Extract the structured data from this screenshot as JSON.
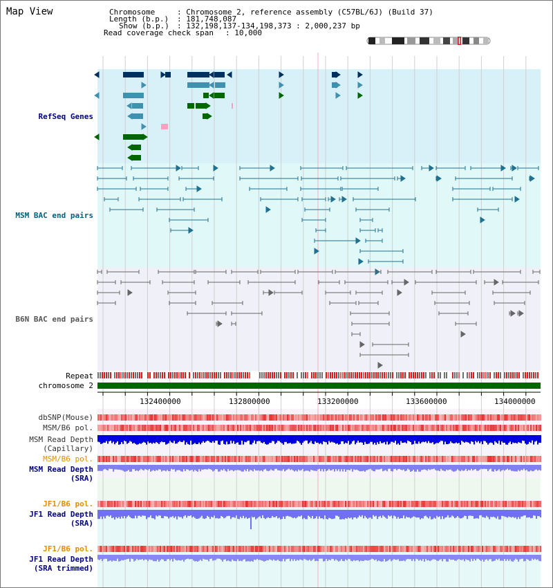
{
  "header": {
    "title": "Map View",
    "chromosome_label": "Chromosome",
    "chromosome_value": ": Chromosome 2, reference assembly (C57BL/6J) (Build 37)",
    "length_label": "Length (b.p.)",
    "length_value": ": 181,748,087",
    "show_label": "Show (b.p.)",
    "show_value": ": 132,198,137-134,198,373 : 2,000,237 bp",
    "coverage_label": "Read coverage check span",
    "coverage_value": ": 10,000"
  },
  "tracks": {
    "refseq": {
      "label": "RefSeq Genes",
      "color": "#000080"
    },
    "msm_bac": {
      "label": "MSM BAC end pairs",
      "color": "#006080"
    },
    "b6n_bac": {
      "label": "B6N BAC end pairs",
      "color": "#555555"
    },
    "repeat": {
      "label": "Repeat"
    },
    "chromosome": {
      "label": "chromosome 2"
    },
    "ruler_ticks": [
      "132400000",
      "132800000",
      "133200000",
      "133600000",
      "134000000"
    ],
    "dbsnp": {
      "label": "dbSNP(Mouse)"
    },
    "msm_b6_pol_1": {
      "label": "MSM/B6 pol."
    },
    "msm_read_depth_cap": {
      "label_line1": "MSM Read Depth",
      "label_line2": "(Capillary)"
    },
    "msm_b6_pol_2": {
      "label": "MSM/B6 pol.",
      "color": "#e09000"
    },
    "msm_read_depth_sra": {
      "label_line1": "MSM Read Depth",
      "label_line2": "(SRA)",
      "color": "#000080"
    },
    "jf1_b6_pol_1": {
      "label": "JF1/B6 pol.",
      "color": "#e09000"
    },
    "jf1_read_depth_sra": {
      "label_line1": "JF1 Read Depth",
      "label_line2": "(SRA)",
      "color": "#000080"
    },
    "jf1_b6_pol_2": {
      "label": "JF1/B6 pol.",
      "color": "#e09000"
    },
    "jf1_read_depth_trim": {
      "label_line1": "JF1 Read Depth",
      "label_line2": "(SRA trimmed)",
      "color": "#000080"
    }
  },
  "colors": {
    "refseq_bg": "#d8f0f8",
    "msm_bg": "#e0f8f8",
    "b6n_bg": "#f0f0f8",
    "gene_dark": "#003060",
    "gene_light": "#4090b0",
    "gene_green": "#006600",
    "chromosome_bar": "#006600",
    "depth_blue": "#0000e0",
    "depth_light": "#7070f0",
    "pol_red": "#e83030"
  }
}
